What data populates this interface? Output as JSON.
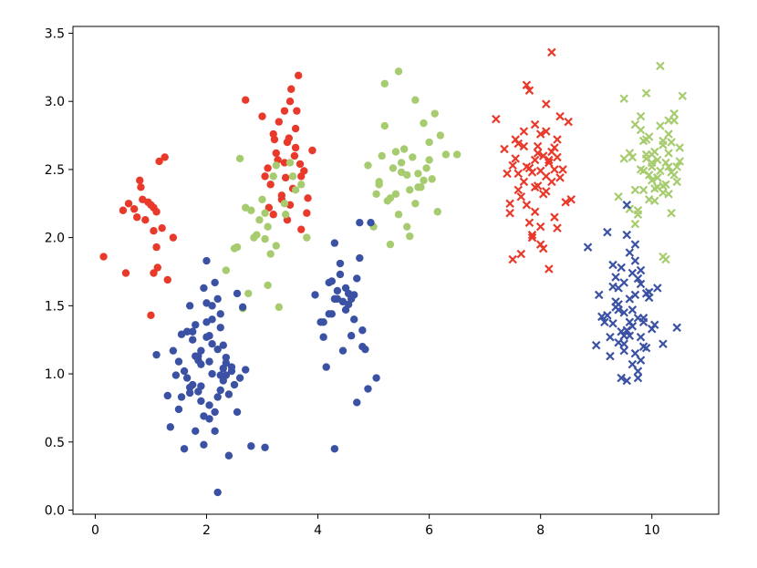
{
  "chart_data": {
    "type": "scatter",
    "title": "",
    "xlabel": "",
    "ylabel": "",
    "xlim": [
      -0.4,
      11.2
    ],
    "ylim": [
      -0.03,
      3.55
    ],
    "grid": false,
    "legend": "none",
    "x_ticks": [
      0,
      2,
      4,
      6,
      8,
      10
    ],
    "x_tick_labels": [
      "0",
      "2",
      "4",
      "6",
      "8",
      "10"
    ],
    "y_ticks": [
      0.0,
      0.5,
      1.0,
      1.5,
      2.0,
      2.5,
      3.0,
      3.5
    ],
    "y_tick_labels": [
      "0.0",
      "0.5",
      "1.0",
      "1.5",
      "2.0",
      "2.5",
      "3.0",
      "3.5"
    ],
    "colors": {
      "red": "#e8392a",
      "blue": "#3b51a3",
      "green": "#a7cc6f"
    },
    "series": [
      {
        "color": "red",
        "marker": "circle",
        "x": [
          0.15,
          0.55,
          0.6,
          0.7,
          0.75,
          0.8,
          0.85,
          0.9,
          0.95,
          1.0,
          1.0,
          1.05,
          1.05,
          1.1,
          1.1,
          1.15,
          1.2,
          1.25,
          1.3,
          1.4,
          0.5,
          1.05,
          0.82,
          1.12
        ],
        "y": [
          1.86,
          1.74,
          2.25,
          2.21,
          2.15,
          2.42,
          2.28,
          2.13,
          2.26,
          2.24,
          1.43,
          2.22,
          1.74,
          2.19,
          1.93,
          2.56,
          2.07,
          2.59,
          1.69,
          2.0,
          2.2,
          2.05,
          2.37,
          1.78
        ]
      },
      {
        "color": "red",
        "marker": "circle",
        "x": [
          2.7,
          3.0,
          3.1,
          3.2,
          3.2,
          3.25,
          3.3,
          3.35,
          3.4,
          3.4,
          3.45,
          3.5,
          3.5,
          3.55,
          3.6,
          3.6,
          3.65,
          3.7,
          3.7,
          3.8,
          3.9,
          3.15,
          3.28,
          3.52,
          3.62,
          3.75,
          3.35,
          3.45,
          3.58,
          3.05,
          3.82,
          3.42,
          3.22,
          3.68,
          3.12,
          3.48
        ],
        "y": [
          3.01,
          2.89,
          2.51,
          2.17,
          2.76,
          2.62,
          2.85,
          2.31,
          2.93,
          2.55,
          2.7,
          3.0,
          2.24,
          2.36,
          2.66,
          2.8,
          3.19,
          2.45,
          2.06,
          2.18,
          2.64,
          2.39,
          2.57,
          3.09,
          2.93,
          2.49,
          2.28,
          2.13,
          2.6,
          2.45,
          2.29,
          2.44,
          2.72,
          2.54,
          2.22,
          2.73
        ]
      },
      {
        "color": "green",
        "marker": "circle",
        "x": [
          2.35,
          2.5,
          2.55,
          2.6,
          2.65,
          2.7,
          2.75,
          2.8,
          2.85,
          3.0,
          3.05,
          3.1,
          3.15,
          3.2,
          3.25,
          3.3,
          3.4,
          3.5,
          3.55,
          3.6,
          3.7,
          3.8,
          3.1,
          2.95,
          3.25,
          3.42,
          3.05,
          2.9
        ],
        "y": [
          1.76,
          1.92,
          1.93,
          2.58,
          1.48,
          2.22,
          1.59,
          2.2,
          2.0,
          2.28,
          2.18,
          1.65,
          1.88,
          2.45,
          2.53,
          1.49,
          2.25,
          2.55,
          2.45,
          2.35,
          2.39,
          2.0,
          2.08,
          2.13,
          1.94,
          2.17,
          1.99,
          2.02
        ]
      },
      {
        "color": "green",
        "marker": "circle",
        "x": [
          4.9,
          5.0,
          5.05,
          5.1,
          5.15,
          5.2,
          5.25,
          5.3,
          5.35,
          5.4,
          5.45,
          5.5,
          5.55,
          5.6,
          5.65,
          5.7,
          5.75,
          5.8,
          5.85,
          5.9,
          6.0,
          6.05,
          6.1,
          6.2,
          6.3,
          6.5,
          5.3,
          5.45,
          5.6,
          5.75,
          5.9,
          6.0,
          5.2,
          5.5,
          5.65,
          5.8,
          5.95,
          6.15,
          5.1,
          5.4
        ],
        "y": [
          2.53,
          2.08,
          2.32,
          2.41,
          2.6,
          3.13,
          2.27,
          2.29,
          2.51,
          2.63,
          3.22,
          2.48,
          2.65,
          2.08,
          2.35,
          2.59,
          3.01,
          2.47,
          2.37,
          2.84,
          2.57,
          2.43,
          2.91,
          2.75,
          2.61,
          2.61,
          1.95,
          2.17,
          2.46,
          2.25,
          2.42,
          2.7,
          2.82,
          2.55,
          2.01,
          2.37,
          2.51,
          2.19,
          2.39,
          2.32
        ]
      },
      {
        "color": "blue",
        "marker": "circle",
        "x": [
          1.1,
          1.3,
          1.35,
          1.4,
          1.45,
          1.5,
          1.55,
          1.6,
          1.65,
          1.7,
          1.75,
          1.8,
          1.85,
          1.9,
          1.95,
          2.0,
          2.05,
          2.1,
          2.15,
          2.2,
          2.25,
          2.3,
          2.35,
          2.4,
          2.45,
          2.5,
          2.55,
          2.6,
          2.65,
          2.7,
          2.8,
          3.05,
          1.55,
          1.65,
          1.75,
          1.85,
          1.95,
          2.05,
          2.15,
          2.25,
          2.35,
          1.6,
          1.7,
          1.8,
          1.9,
          2.0,
          2.1,
          2.2,
          2.3,
          1.5,
          1.9,
          2.05,
          2.25,
          2.0,
          2.1,
          2.2,
          1.8,
          2.3,
          2.4,
          1.95,
          2.15,
          2.0,
          1.85,
          2.05,
          2.25,
          1.9,
          2.1,
          1.75,
          2.2,
          2.35,
          2.45,
          2.55,
          1.7
        ],
        "y": [
          1.14,
          0.84,
          0.61,
          1.17,
          0.99,
          1.09,
          1.29,
          0.45,
          1.31,
          1.5,
          0.92,
          1.36,
          1.13,
          0.91,
          1.63,
          1.52,
          1.09,
          1.4,
          1.67,
          1.55,
          1.44,
          1.21,
          1.12,
          0.4,
          1.02,
          0.92,
          1.59,
          0.97,
          1.49,
          1.03,
          0.47,
          0.46,
          0.83,
          0.97,
          1.25,
          1.1,
          0.69,
          1.28,
          0.72,
          0.88,
          1.08,
          1.02,
          0.86,
          1.13,
          0.8,
          1.38,
          1.0,
          1.18,
          0.95,
          0.74,
          1.07,
          0.67,
          0.99,
          1.83,
          1.5,
          0.83,
          0.58,
          1.04,
          0.85,
          0.48,
          0.58,
          1.27,
          0.87,
          0.77,
          1.34,
          1.17,
          1.22,
          1.31,
          0.13,
          0.99,
          1.05,
          0.72,
          0.9
        ]
      },
      {
        "color": "blue",
        "marker": "circle",
        "x": [
          3.95,
          4.05,
          4.1,
          4.15,
          4.2,
          4.25,
          4.3,
          4.35,
          4.4,
          4.45,
          4.5,
          4.55,
          4.6,
          4.65,
          4.7,
          4.75,
          4.8,
          4.85,
          4.9,
          4.95,
          5.05,
          4.3,
          4.4,
          4.5,
          4.6,
          4.2,
          4.7,
          4.35,
          4.55,
          4.25,
          4.45,
          4.65,
          4.75,
          4.1,
          4.8,
          4.3
        ],
        "y": [
          1.58,
          1.38,
          1.27,
          1.05,
          1.67,
          1.44,
          1.96,
          1.55,
          1.73,
          1.17,
          1.63,
          1.59,
          1.55,
          1.4,
          0.79,
          2.11,
          1.32,
          1.18,
          0.89,
          2.11,
          0.97,
          0.45,
          1.81,
          1.47,
          1.28,
          1.44,
          1.7,
          1.61,
          1.51,
          1.68,
          1.53,
          1.58,
          1.85,
          1.38,
          1.2,
          1.55
        ]
      },
      {
        "color": "red",
        "marker": "x",
        "x": [
          7.2,
          7.35,
          7.4,
          7.45,
          7.5,
          7.55,
          7.6,
          7.65,
          7.7,
          7.75,
          7.8,
          7.85,
          7.9,
          7.95,
          8.0,
          8.05,
          8.1,
          8.15,
          8.2,
          8.25,
          8.3,
          8.35,
          8.4,
          8.45,
          8.5,
          8.55,
          7.5,
          7.6,
          7.7,
          7.8,
          7.9,
          8.0,
          8.1,
          8.2,
          8.3,
          7.45,
          7.55,
          7.65,
          7.75,
          7.85,
          7.95,
          8.05,
          8.15,
          8.25,
          8.35,
          7.7,
          7.9,
          8.1,
          8.3,
          7.8,
          8.0,
          8.2,
          7.6,
          7.85,
          8.05,
          8.15,
          7.95,
          8.1,
          8.25,
          7.75,
          8.0,
          7.9
        ],
        "y": [
          2.87,
          2.65,
          2.47,
          2.25,
          1.84,
          2.72,
          2.35,
          1.88,
          2.78,
          3.12,
          3.08,
          2.02,
          2.83,
          2.62,
          2.49,
          2.32,
          2.98,
          1.77,
          3.36,
          2.15,
          2.59,
          2.89,
          2.5,
          2.26,
          2.85,
          2.28,
          2.53,
          2.69,
          2.41,
          2.11,
          2.57,
          2.76,
          2.45,
          2.63,
          2.07,
          2.18,
          2.58,
          2.3,
          2.52,
          2.48,
          2.38,
          2.6,
          2.55,
          2.66,
          2.44,
          2.67,
          2.19,
          2.34,
          2.72,
          2.51,
          2.08,
          2.41,
          2.47,
          2.0,
          1.92,
          2.57,
          2.67,
          2.78,
          2.5,
          2.24,
          1.95,
          2.37
        ]
      },
      {
        "color": "green",
        "marker": "x",
        "x": [
          9.4,
          9.5,
          9.6,
          9.65,
          9.7,
          9.75,
          9.8,
          9.85,
          9.9,
          9.95,
          10.0,
          10.05,
          10.1,
          10.15,
          10.2,
          10.25,
          10.3,
          10.35,
          10.4,
          10.45,
          10.5,
          10.55,
          9.7,
          9.8,
          9.9,
          10.0,
          10.1,
          10.2,
          10.3,
          10.4,
          9.75,
          9.85,
          9.95,
          10.05,
          10.15,
          10.25,
          10.35,
          9.9,
          10.0,
          10.1,
          10.2,
          10.3,
          9.8,
          10.05,
          10.25,
          10.45,
          9.95,
          10.15,
          10.35,
          9.85,
          10.4,
          10.2,
          9.6,
          10.0,
          10.3,
          9.7,
          10.1,
          10.5,
          9.9,
          10.2,
          10.3,
          9.5
        ],
        "y": [
          2.3,
          3.02,
          2.62,
          2.59,
          2.35,
          2.17,
          2.89,
          2.49,
          3.06,
          2.74,
          2.55,
          2.27,
          2.37,
          3.26,
          2.71,
          1.84,
          2.62,
          2.48,
          2.86,
          2.41,
          2.66,
          3.04,
          2.1,
          2.79,
          2.58,
          2.52,
          2.44,
          2.68,
          2.32,
          2.91,
          2.2,
          2.71,
          2.46,
          2.36,
          2.82,
          2.55,
          2.18,
          2.61,
          2.42,
          2.57,
          2.33,
          2.76,
          2.5,
          2.63,
          2.39,
          2.52,
          2.28,
          2.49,
          2.7,
          2.35,
          2.46,
          1.86,
          2.21,
          2.61,
          2.52,
          2.83,
          2.44,
          2.56,
          2.72,
          2.38,
          2.86,
          2.58
        ]
      },
      {
        "color": "blue",
        "marker": "x",
        "x": [
          8.85,
          9.0,
          9.05,
          9.1,
          9.15,
          9.2,
          9.25,
          9.3,
          9.35,
          9.4,
          9.45,
          9.5,
          9.55,
          9.6,
          9.65,
          9.7,
          9.75,
          9.8,
          9.85,
          9.9,
          9.95,
          10.0,
          10.05,
          10.1,
          10.2,
          10.45,
          9.2,
          9.3,
          9.4,
          9.5,
          9.6,
          9.7,
          9.8,
          9.9,
          9.25,
          9.35,
          9.45,
          9.55,
          9.65,
          9.75,
          9.85,
          9.95,
          9.3,
          9.4,
          9.5,
          9.6,
          9.7,
          9.8,
          9.35,
          9.55,
          9.75,
          9.45,
          9.65,
          9.85,
          9.5,
          9.6,
          9.7,
          9.4,
          9.8,
          9.5,
          9.55,
          9.65,
          9.75
        ],
        "y": [
          1.93,
          1.21,
          1.58,
          1.42,
          1.38,
          2.04,
          1.27,
          1.8,
          1.71,
          1.23,
          0.97,
          1.67,
          2.24,
          1.55,
          1.47,
          1.83,
          0.97,
          1.76,
          1.41,
          1.19,
          1.6,
          1.33,
          1.36,
          1.63,
          1.22,
          1.34,
          1.43,
          1.64,
          1.51,
          1.17,
          1.38,
          1.95,
          1.27,
          1.59,
          1.13,
          1.49,
          1.78,
          1.32,
          1.07,
          1.7,
          1.2,
          1.56,
          1.37,
          1.63,
          1.45,
          1.28,
          1.15,
          1.66,
          1.53,
          0.95,
          1.41,
          1.31,
          1.74,
          1.38,
          1.22,
          1.89,
          1.58,
          1.47,
          1.1,
          1.28,
          2.02,
          1.35,
          1.02
        ]
      }
    ]
  }
}
